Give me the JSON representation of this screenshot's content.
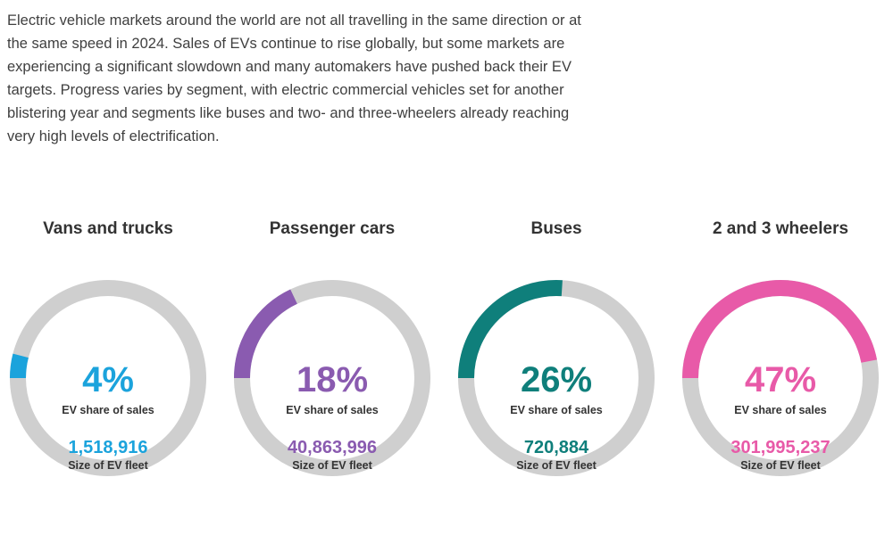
{
  "intro_text": "Electric vehicle markets around the world are not all travelling in the same direction or at the same speed in 2024. Sales of EVs continue to rise globally, but some markets are experiencing a significant slowdown and many automakers have pushed back their EV targets. Progress varies by segment, with electric commercial vehicles set for another blistering year and segments like buses and two- and three-wheelers already reaching very high levels of electrification.",
  "colors": {
    "track": "#cfcfcf"
  },
  "chart_data": [
    {
      "type": "pie",
      "title": "Vans and trucks",
      "share_label": "4%",
      "share_value": 4,
      "share_caption": "EV share of sales",
      "fleet_label": "1,518,916",
      "fleet_value": 1518916,
      "fleet_caption": "Size of EV fleet",
      "color": "#1ba3dc"
    },
    {
      "type": "pie",
      "title": "Passenger cars",
      "share_label": "18%",
      "share_value": 18,
      "share_caption": "EV share of sales",
      "fleet_label": "40,863,996",
      "fleet_value": 40863996,
      "fleet_caption": "Size of EV fleet",
      "color": "#8a5bb0"
    },
    {
      "type": "pie",
      "title": "Buses",
      "share_label": "26%",
      "share_value": 26,
      "share_caption": "EV share of sales",
      "fleet_label": "720,884",
      "fleet_value": 720884,
      "fleet_caption": "Size of EV fleet",
      "color": "#0f7f7b"
    },
    {
      "type": "pie",
      "title": "2 and 3 wheelers",
      "share_label": "47%",
      "share_value": 47,
      "share_caption": "EV share of sales",
      "fleet_label": "301,995,237",
      "fleet_value": 301995237,
      "fleet_caption": "Size of EV fleet",
      "color": "#e85aa8"
    }
  ]
}
